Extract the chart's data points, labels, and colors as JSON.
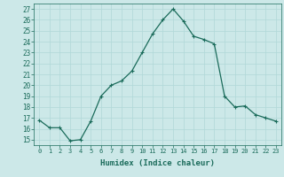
{
  "x": [
    0,
    1,
    2,
    3,
    4,
    5,
    6,
    7,
    8,
    9,
    10,
    11,
    12,
    13,
    14,
    15,
    16,
    17,
    18,
    19,
    20,
    21,
    22,
    23
  ],
  "y": [
    16.8,
    16.1,
    16.1,
    14.9,
    15.0,
    16.7,
    19.0,
    20.0,
    20.4,
    21.3,
    23.0,
    24.7,
    26.0,
    27.0,
    25.9,
    24.5,
    24.2,
    23.8,
    19.0,
    18.0,
    18.1,
    17.3,
    17.0,
    16.7
  ],
  "line_color": "#1a6b5a",
  "marker": "+",
  "marker_size": 3,
  "marker_linewidth": 0.8,
  "bg_color": "#cce8e8",
  "grid_color": "#b0d8d8",
  "xlabel": "Humidex (Indice chaleur)",
  "ylabel_ticks": [
    15,
    16,
    17,
    18,
    19,
    20,
    21,
    22,
    23,
    24,
    25,
    26,
    27
  ],
  "xlim": [
    -0.5,
    23.5
  ],
  "ylim": [
    14.5,
    27.5
  ],
  "xtick_fontsize": 5.0,
  "ytick_fontsize": 5.5,
  "xlabel_fontsize": 6.5,
  "linewidth": 0.9
}
